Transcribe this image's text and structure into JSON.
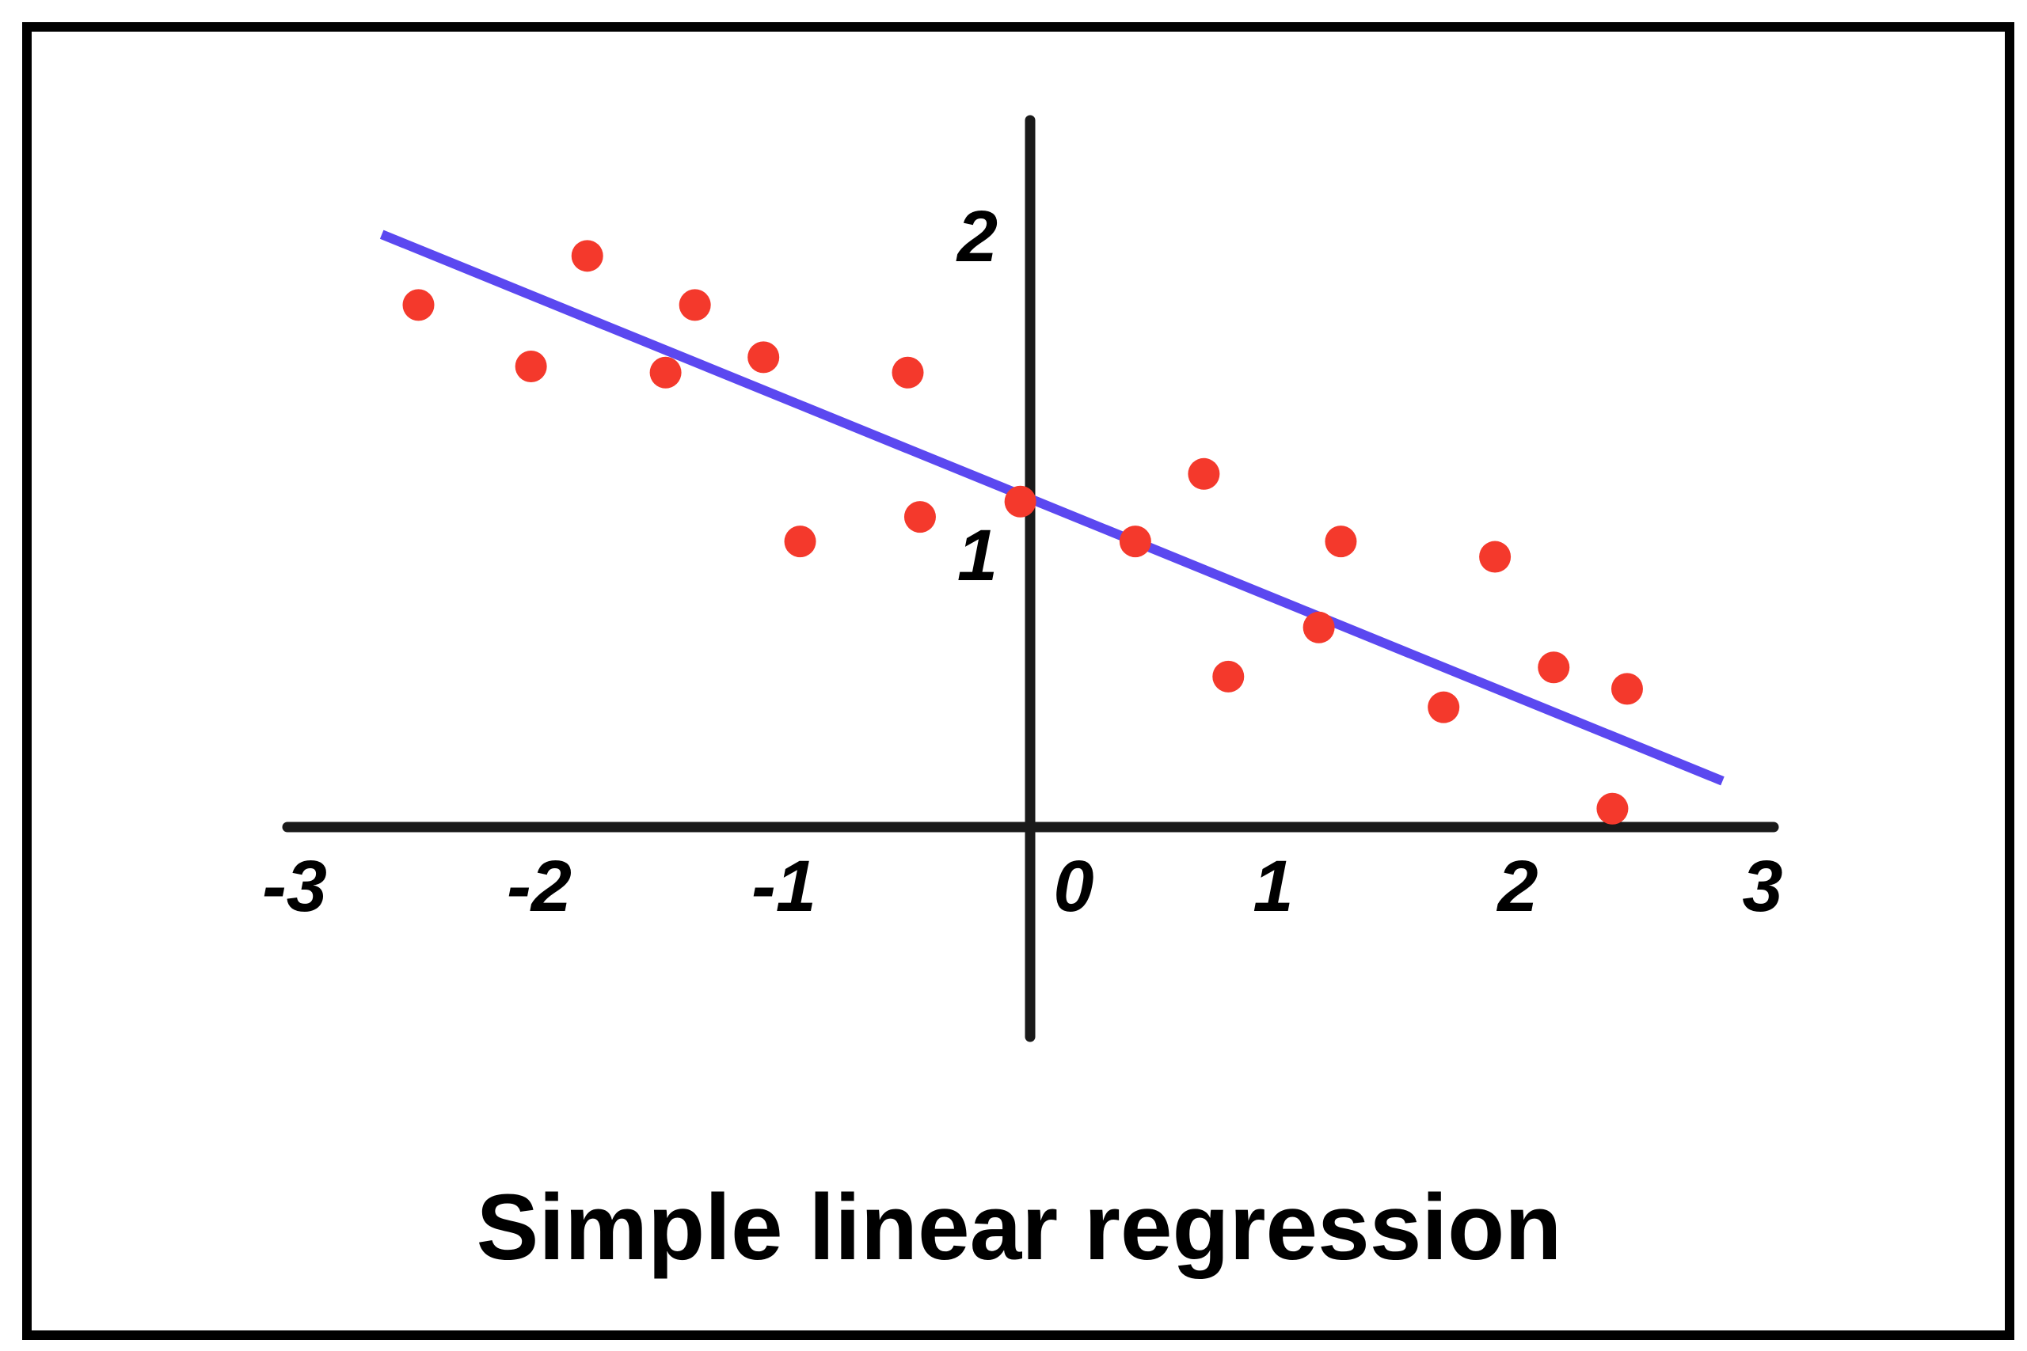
{
  "chart_data": {
    "type": "scatter",
    "title": "Simple linear regression",
    "xlabel": "",
    "ylabel": "",
    "xlim": [
      -3,
      3
    ],
    "x_ticks": [
      "-3",
      "-2",
      "-1",
      "0",
      "1",
      "2",
      "3"
    ],
    "y_ticks": [
      "1",
      "2"
    ],
    "grid": false,
    "colors": {
      "points": "#f4392c",
      "regression_line": "#5b48f0",
      "axes": "#1a1a1a",
      "frame": "#000000"
    },
    "series": [
      {
        "kind": "points",
        "x": [
          -2.5,
          -2.04,
          -1.81,
          -1.49,
          -1.37,
          -1.09,
          -0.94,
          -0.5,
          -0.45,
          -0.04,
          0.43,
          0.71,
          0.81,
          1.18,
          1.27,
          1.69,
          1.9,
          2.14,
          2.38,
          2.44
        ],
        "y": [
          1.7,
          1.5,
          1.86,
          1.48,
          1.7,
          1.53,
          0.93,
          1.48,
          1.01,
          1.06,
          0.93,
          1.15,
          0.49,
          0.65,
          0.93,
          0.39,
          0.88,
          0.52,
          0.06,
          0.45
        ]
      },
      {
        "kind": "regression-line",
        "x": [
          -2.65,
          2.83
        ],
        "y": [
          1.93,
          0.15
        ]
      }
    ]
  }
}
